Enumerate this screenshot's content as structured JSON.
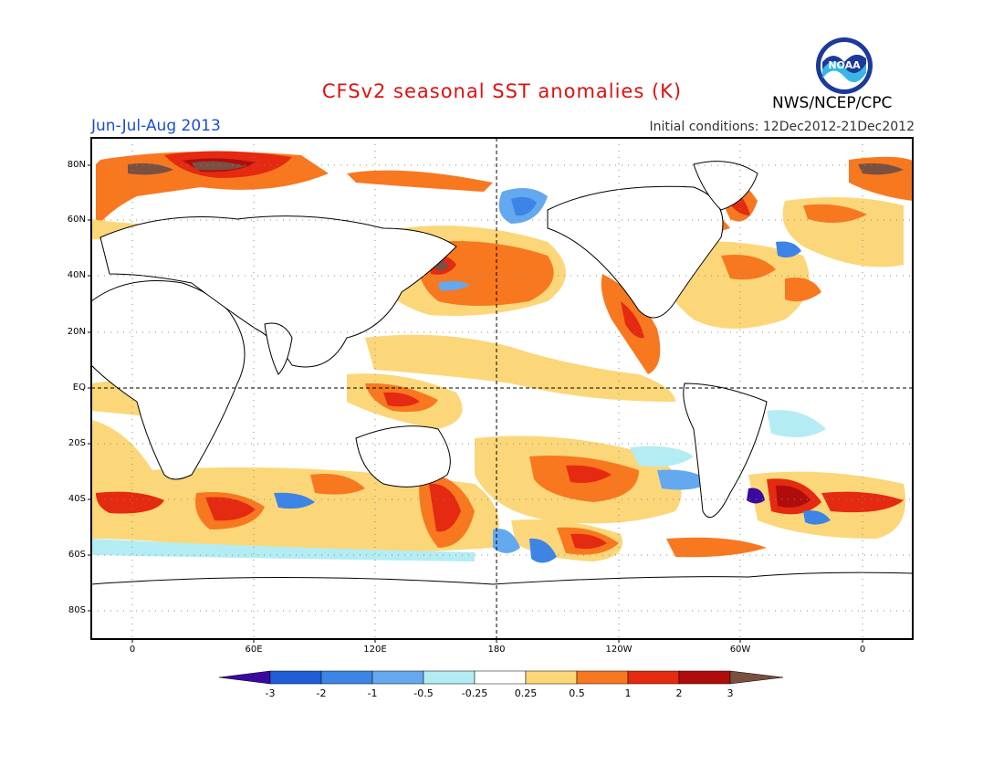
{
  "header": {
    "title": "CFSv2 seasonal SST anomalies (K)",
    "season": "Jun-Jul-Aug 2013",
    "initial_conditions": "Initial conditions: 12Dec2012-21Dec2012",
    "agency": "NWS/NCEP/CPC",
    "logo_text": "NOAA"
  },
  "map": {
    "lat_labels": [
      "80N",
      "60N",
      "40N",
      "20N",
      "EQ",
      "20S",
      "40S",
      "60S",
      "80S"
    ],
    "lon_labels": [
      "0",
      "60E",
      "120E",
      "180",
      "120W",
      "60W",
      "0"
    ]
  },
  "colorbar": {
    "labels": [
      "-3",
      "-2",
      "-1",
      "-0.5",
      "-0.25",
      "0.25",
      "0.5",
      "1",
      "2",
      "3"
    ],
    "colors": [
      "#3a0aa0",
      "#1f5fd6",
      "#3c84e6",
      "#64a8f0",
      "#b4ecf4",
      "#ffffff",
      "#fbd77a",
      "#f87820",
      "#e42a10",
      "#b00c0c",
      "#7a5040"
    ]
  },
  "colors": {
    "title": "#e01010",
    "season": "#1a4fd0",
    "land_outline": "#000000",
    "frame": "#000000"
  }
}
